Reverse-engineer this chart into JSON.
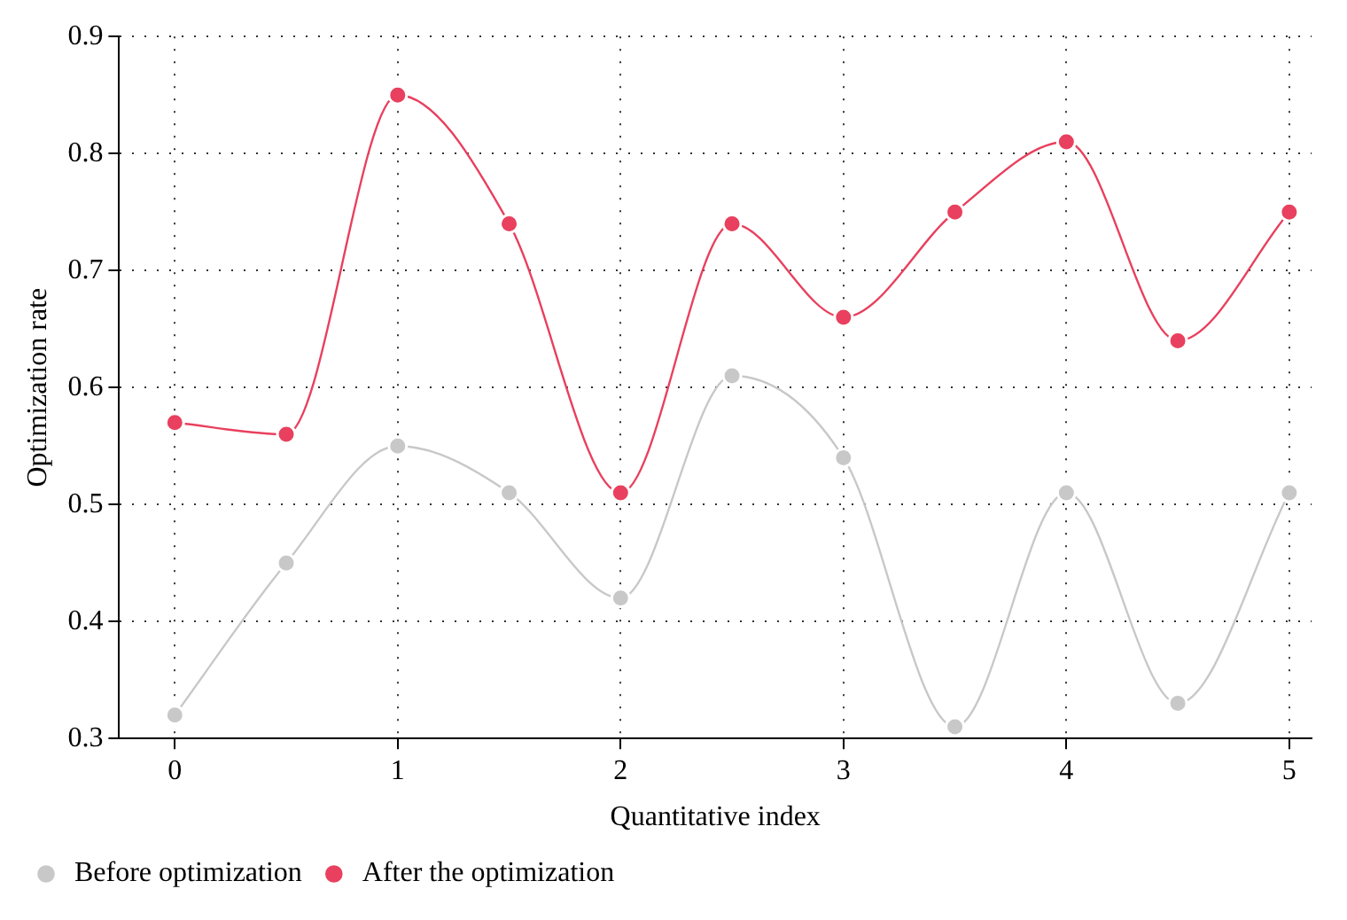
{
  "chart_data": {
    "type": "line",
    "xlabel": "Quantitative index",
    "ylabel": "Optimization rate",
    "x": [
      0,
      0.5,
      1,
      1.5,
      2,
      2.5,
      3,
      3.5,
      4,
      4.5,
      5
    ],
    "series": [
      {
        "name": "Before optimization",
        "color": "#c8c8c8",
        "values": [
          0.32,
          0.45,
          0.55,
          0.51,
          0.42,
          0.61,
          0.54,
          0.31,
          0.51,
          0.33,
          0.51
        ]
      },
      {
        "name": "After the optimization",
        "color": "#e8405e",
        "values": [
          0.57,
          0.56,
          0.85,
          0.74,
          0.51,
          0.74,
          0.66,
          0.75,
          0.81,
          0.64,
          0.75
        ]
      }
    ],
    "xlim": [
      -0.25,
      5.1
    ],
    "ylim": [
      0.3,
      0.9
    ],
    "xticks": [
      0,
      1,
      2,
      3,
      4,
      5
    ],
    "yticks": [
      0.3,
      0.4,
      0.5,
      0.6,
      0.7,
      0.8,
      0.9
    ],
    "grid": true,
    "legend": "bottom",
    "marker": "circle",
    "line_style": "solid"
  }
}
